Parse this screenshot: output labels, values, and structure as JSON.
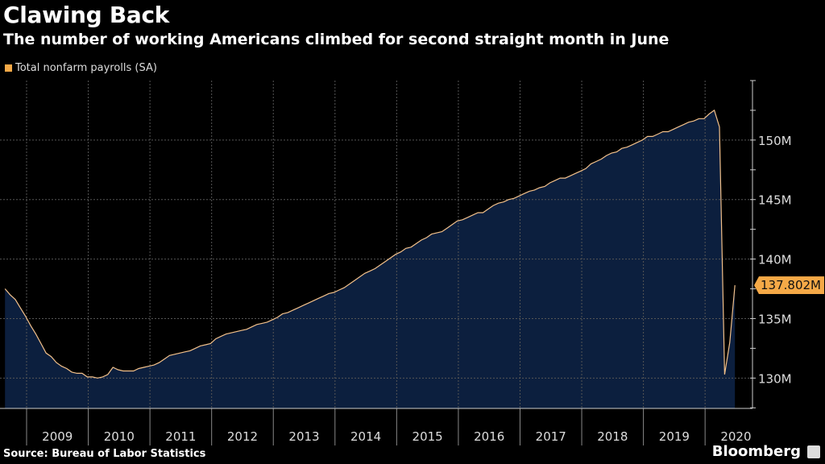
{
  "title": "Clawing Back",
  "subtitle": "The number of working Americans climbed for second straight month in June",
  "source": "Source: Bureau of Labor Statistics",
  "brand": "Bloomberg",
  "chart_data": {
    "type": "area",
    "series": [
      {
        "name": "Total nonfarm payrolls (SA)",
        "color": "#f5a947",
        "unit": "M",
        "start": "2008-08",
        "frequency": "monthly",
        "values": [
          137.5,
          137.0,
          136.6,
          135.9,
          135.2,
          134.4,
          133.7,
          132.9,
          132.1,
          131.8,
          131.3,
          131.0,
          130.8,
          130.5,
          130.4,
          130.4,
          130.1,
          130.1,
          130.0,
          130.1,
          130.3,
          130.9,
          130.7,
          130.6,
          130.6,
          130.6,
          130.8,
          130.9,
          131.0,
          131.1,
          131.3,
          131.6,
          131.9,
          132.0,
          132.1,
          132.2,
          132.3,
          132.5,
          132.7,
          132.8,
          132.9,
          133.3,
          133.5,
          133.7,
          133.8,
          133.9,
          134.0,
          134.1,
          134.3,
          134.5,
          134.6,
          134.7,
          134.9,
          135.1,
          135.4,
          135.5,
          135.7,
          135.9,
          136.1,
          136.3,
          136.5,
          136.7,
          136.9,
          137.1,
          137.2,
          137.4,
          137.6,
          137.9,
          138.2,
          138.5,
          138.8,
          139.0,
          139.2,
          139.5,
          139.8,
          140.1,
          140.4,
          140.6,
          140.9,
          141.0,
          141.3,
          141.6,
          141.8,
          142.1,
          142.2,
          142.3,
          142.6,
          142.9,
          143.2,
          143.3,
          143.5,
          143.7,
          143.9,
          143.9,
          144.2,
          144.5,
          144.7,
          144.8,
          145.0,
          145.1,
          145.3,
          145.5,
          145.7,
          145.8,
          146.0,
          146.1,
          146.4,
          146.6,
          146.8,
          146.8,
          147.0,
          147.2,
          147.4,
          147.6,
          148.0,
          148.2,
          148.4,
          148.7,
          148.9,
          149.0,
          149.3,
          149.4,
          149.6,
          149.8,
          150.0,
          150.3,
          150.3,
          150.5,
          150.7,
          150.7,
          150.9,
          151.1,
          151.3,
          151.5,
          151.6,
          151.8,
          151.8,
          152.2,
          152.5,
          151.1,
          130.3,
          133.0,
          137.802
        ]
      }
    ],
    "fill_color": "#0c1f3e",
    "x_tick_labels": [
      "2009",
      "2010",
      "2011",
      "2012",
      "2013",
      "2014",
      "2015",
      "2016",
      "2017",
      "2018",
      "2019",
      "2020"
    ],
    "y_tick_labels": [
      "130M",
      "135M",
      "140M",
      "145M",
      "150M"
    ],
    "y_ticks": [
      130,
      135,
      140,
      145,
      150
    ],
    "ylim": [
      127.45,
      155
    ],
    "y_axis_side": "right",
    "grid": true,
    "last_value_label": "137.802M",
    "legend_placement": "top-left"
  }
}
